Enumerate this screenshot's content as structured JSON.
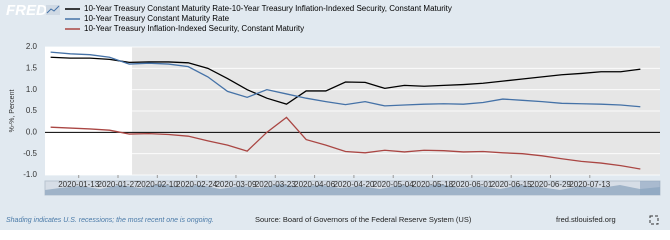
{
  "header": {
    "logo": "FRED"
  },
  "chart_data": {
    "type": "line",
    "y_label": "%-%, Percent",
    "x": [
      "2020-01-03",
      "2020-01-10",
      "2020-01-17",
      "2020-01-24",
      "2020-01-31",
      "2020-02-07",
      "2020-02-14",
      "2020-02-21",
      "2020-02-28",
      "2020-03-06",
      "2020-03-13",
      "2020-03-20",
      "2020-03-27",
      "2020-04-03",
      "2020-04-10",
      "2020-04-17",
      "2020-04-24",
      "2020-05-01",
      "2020-05-08",
      "2020-05-15",
      "2020-05-22",
      "2020-05-29",
      "2020-06-05",
      "2020-06-12",
      "2020-06-19",
      "2020-06-26",
      "2020-07-03",
      "2020-07-10",
      "2020-07-17",
      "2020-07-24",
      "2020-07-31"
    ],
    "series": [
      {
        "name": "10-Year Treasury Constant Maturity Rate-10-Year Treasury Inflation-Indexed Security, Constant Maturity",
        "color": "#000000",
        "values": [
          1.76,
          1.74,
          1.74,
          1.71,
          1.64,
          1.65,
          1.65,
          1.63,
          1.5,
          1.26,
          1.0,
          0.8,
          0.66,
          0.97,
          0.97,
          1.18,
          1.17,
          1.03,
          1.1,
          1.08,
          1.1,
          1.12,
          1.15,
          1.2,
          1.25,
          1.3,
          1.35,
          1.38,
          1.42,
          1.42,
          1.48
        ]
      },
      {
        "name": "10-Year Treasury Constant Maturity Rate",
        "color": "#4572a7",
        "values": [
          1.88,
          1.84,
          1.82,
          1.76,
          1.6,
          1.62,
          1.6,
          1.54,
          1.3,
          0.96,
          0.82,
          1.0,
          0.9,
          0.8,
          0.72,
          0.65,
          0.72,
          0.62,
          0.64,
          0.66,
          0.67,
          0.66,
          0.7,
          0.78,
          0.75,
          0.72,
          0.68,
          0.67,
          0.66,
          0.64,
          0.6
        ]
      },
      {
        "name": "10-Year Treasury Inflation-Indexed Security, Constant Maturity",
        "color": "#aa4643",
        "values": [
          0.12,
          0.1,
          0.08,
          0.05,
          -0.04,
          -0.03,
          -0.05,
          -0.09,
          -0.2,
          -0.3,
          -0.44,
          0.0,
          0.35,
          -0.17,
          -0.3,
          -0.45,
          -0.48,
          -0.42,
          -0.46,
          -0.42,
          -0.43,
          -0.46,
          -0.45,
          -0.48,
          -0.5,
          -0.55,
          -0.62,
          -0.68,
          -0.72,
          -0.78,
          -0.86
        ]
      }
    ],
    "xlim": [
      "2020-01-01",
      "2020-08-07"
    ],
    "xticks": [
      "2020-01-13",
      "2020-01-27",
      "2020-02-10",
      "2020-02-24",
      "2020-03-09",
      "2020-03-23",
      "2020-04-06",
      "2020-04-20",
      "2020-05-04",
      "2020-05-18",
      "2020-06-01",
      "2020-06-15",
      "2020-06-29",
      "2020-07-13"
    ],
    "ylim": [
      -1.0,
      2.0
    ],
    "yticks": [
      {
        "value": 2,
        "label": "2.0"
      },
      {
        "value": 1.5,
        "label": "1.5"
      },
      {
        "value": 1,
        "label": "1.0"
      },
      {
        "value": 0.5,
        "label": "0.5"
      },
      {
        "value": 0,
        "label": "0.0"
      },
      {
        "value": -0.5,
        "label": "-0.5"
      },
      {
        "value": -1,
        "label": "-1.0"
      }
    ],
    "recession_start": "2020-02-01",
    "grid": true
  },
  "footer": {
    "note": "Shading indicates U.S. recessions; the most recent one is ongoing.",
    "source": "Source: Board of Governors of the Federal Reserve System (US)",
    "site": "fred.stlouisfed.org"
  }
}
